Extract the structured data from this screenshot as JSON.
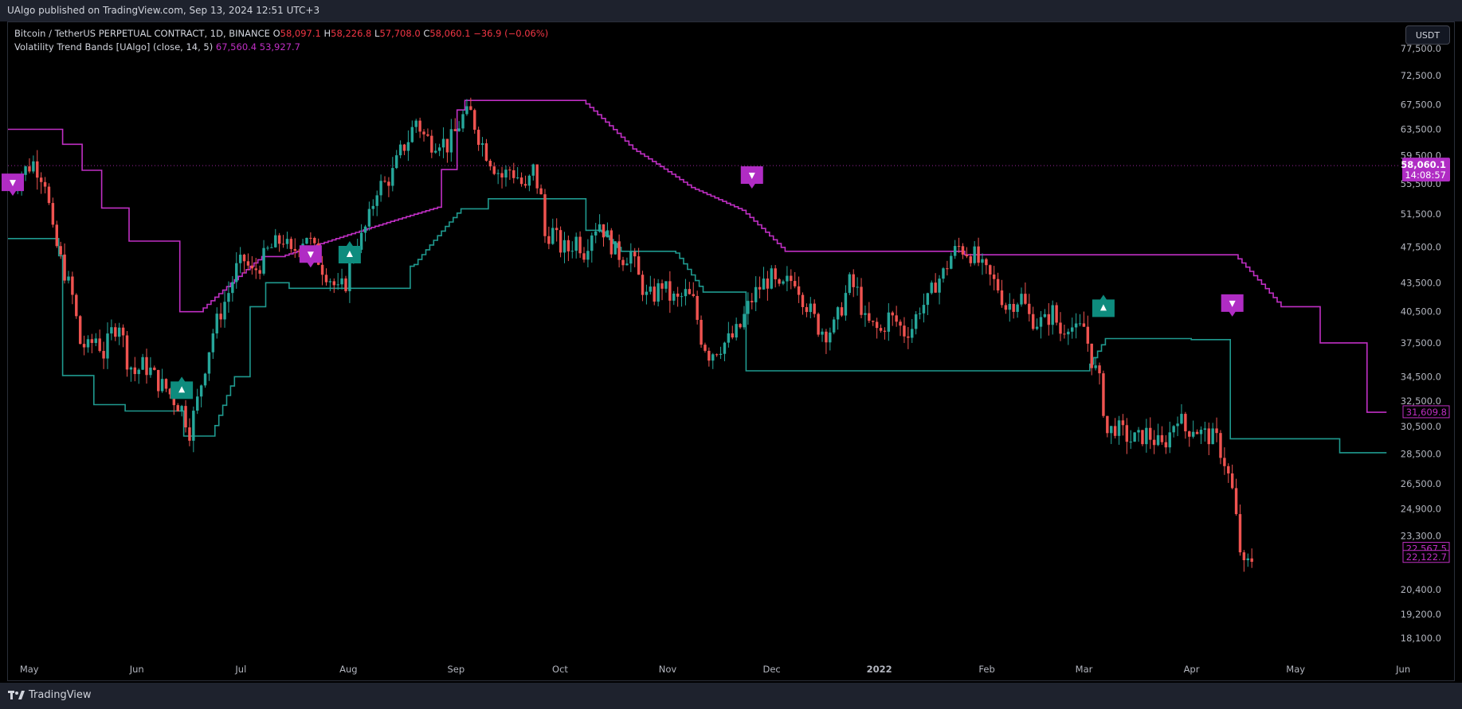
{
  "header": {
    "published_text": "UAlgo published on TradingView.com, Sep 13, 2024 12:51 UTC+3"
  },
  "legend": {
    "symbol": "Bitcoin / TetherUS PERPETUAL CONTRACT, 1D, BINANCE",
    "o_label": "O",
    "o_value": "58,097.1",
    "h_label": "H",
    "h_value": "58,226.8",
    "l_label": "L",
    "l_value": "57,708.0",
    "c_label": "C",
    "c_value": "58,060.1",
    "change": "−36.9 (−0.06%)",
    "indicator": "Volatility Trend Bands [UAlgo] (close, 14, 5)",
    "ind_val1": "67,560.4",
    "ind_val2": "53,927.7"
  },
  "currency_button": "USDT",
  "brand": {
    "name": "TradingView"
  },
  "colors": {
    "up": "#26a69a",
    "down": "#ef5350",
    "upper_band": "#c02fc4",
    "lower_band": "#1f9a8f",
    "sell_label": "#b02cc4",
    "buy_label": "#0e8c7e",
    "background": "#000000"
  },
  "chart_data": {
    "type": "candlestick",
    "symbol": "Bitcoin / TetherUS PERPETUAL CONTRACT",
    "interval": "1D",
    "exchange": "BINANCE",
    "y_axis_ticks": [
      77500,
      72500,
      67500,
      63500,
      59500,
      55500,
      51500,
      47500,
      43500,
      40500,
      37500,
      34500,
      32500,
      30500,
      28500,
      26500,
      24900,
      23300,
      20400,
      19200,
      18100
    ],
    "y_axis_labels": [
      "77,500.0",
      "72,500.0",
      "67,500.0",
      "63,500.0",
      "59,500.0",
      "55,500.0",
      "51,500.0",
      "47,500.0",
      "43,500.0",
      "40,500.0",
      "37,500.0",
      "34,500.0",
      "32,500.0",
      "30,500.0",
      "28,500.0",
      "26,500.0",
      "24,900.0",
      "23,300.0",
      "20,400.0",
      "19,200.0",
      "18,100.0"
    ],
    "ylim": [
      17600,
      79000
    ],
    "y_scale": "log",
    "x_labels": [
      "May",
      "Jun",
      "Jul",
      "Aug",
      "Sep",
      "Oct",
      "Nov",
      "Dec",
      "2022",
      "Feb",
      "Mar",
      "Apr",
      "May",
      "Jun"
    ],
    "last_price": "58,060.1",
    "countdown": "14:08:57",
    "price_badges": [
      {
        "text": "31,609.8",
        "value": 31609.8
      },
      {
        "text": "22,567.5",
        "value": 22567.5
      },
      {
        "text": "22,122.7",
        "value": 22122.7
      }
    ],
    "upper_band": [
      [
        0,
        63500
      ],
      [
        12,
        63500
      ],
      [
        14,
        61200
      ],
      [
        18,
        61200
      ],
      [
        19,
        57400
      ],
      [
        23,
        57400
      ],
      [
        24,
        52300
      ],
      [
        30,
        52300
      ],
      [
        31,
        48200
      ],
      [
        43,
        48200
      ],
      [
        44,
        40500
      ],
      [
        48,
        40500
      ],
      [
        49,
        40500
      ],
      [
        65,
        46400
      ],
      [
        66,
        46400
      ],
      [
        69,
        46400
      ],
      [
        70,
        46400
      ],
      [
        110,
        52400
      ],
      [
        111,
        57500
      ],
      [
        115,
        66600
      ],
      [
        117,
        68200
      ],
      [
        147,
        68200
      ],
      [
        160,
        60500
      ],
      [
        175,
        55000
      ],
      [
        188,
        52000
      ],
      [
        199,
        47000
      ],
      [
        215,
        47000
      ],
      [
        245,
        46600
      ],
      [
        248,
        46600
      ],
      [
        290,
        46600
      ],
      [
        314,
        46600
      ],
      [
        326,
        41000
      ],
      [
        333,
        41000
      ],
      [
        336,
        37500
      ],
      [
        344,
        37500
      ],
      [
        348,
        31600
      ],
      [
        352,
        31600
      ]
    ],
    "lower_band": [
      [
        0,
        48500
      ],
      [
        8,
        48500
      ],
      [
        9,
        48500
      ],
      [
        13,
        46500
      ],
      [
        14,
        34600
      ],
      [
        21,
        34600
      ],
      [
        22,
        32200
      ],
      [
        29,
        32200
      ],
      [
        30,
        31700
      ],
      [
        44,
        31700
      ],
      [
        45,
        29800
      ],
      [
        52,
        29800
      ],
      [
        58,
        34500
      ],
      [
        62,
        41000
      ],
      [
        66,
        43500
      ],
      [
        70,
        43500
      ],
      [
        72,
        42900
      ],
      [
        92,
        42900
      ],
      [
        96,
        42900
      ],
      [
        100,
        42900
      ],
      [
        103,
        45300
      ],
      [
        104,
        45500
      ],
      [
        116,
        52200
      ],
      [
        123,
        53500
      ],
      [
        125,
        53500
      ],
      [
        147,
        53500
      ],
      [
        148,
        49500
      ],
      [
        152,
        49300
      ],
      [
        157,
        47000
      ],
      [
        171,
        46800
      ],
      [
        178,
        42500
      ],
      [
        188,
        42500
      ],
      [
        189,
        35000
      ],
      [
        200,
        35000
      ],
      [
        276,
        35000
      ],
      [
        281,
        37900
      ],
      [
        282,
        37900
      ],
      [
        302,
        37900
      ],
      [
        303,
        37800
      ],
      [
        310,
        37800
      ],
      [
        313,
        29600
      ],
      [
        330,
        29600
      ],
      [
        341,
        28600
      ],
      [
        350,
        28600
      ]
    ],
    "signals": [
      {
        "type": "sell",
        "bar": 0,
        "price": 55500
      },
      {
        "type": "buy",
        "bar": 44,
        "price": 33500
      },
      {
        "type": "sell",
        "bar": 77,
        "price": 46500
      },
      {
        "type": "buy",
        "bar": 87,
        "price": 46800
      },
      {
        "type": "sell",
        "bar": 190,
        "price": 56500
      },
      {
        "type": "buy",
        "bar": 280,
        "price": 41000
      },
      {
        "type": "sell",
        "bar": 313,
        "price": 41200
      }
    ],
    "price_path": [
      [
        0,
        55200
      ],
      [
        3,
        57000
      ],
      [
        6,
        58500
      ],
      [
        9,
        56000
      ],
      [
        11,
        49000
      ],
      [
        13,
        46000
      ],
      [
        16,
        42000
      ],
      [
        18,
        37500
      ],
      [
        20,
        37000
      ],
      [
        22,
        38000
      ],
      [
        24,
        36500
      ],
      [
        26,
        38500
      ],
      [
        28,
        39500
      ],
      [
        30,
        36000
      ],
      [
        32,
        34800
      ],
      [
        34,
        35500
      ],
      [
        36,
        35000
      ],
      [
        38,
        34000
      ],
      [
        40,
        33500
      ],
      [
        42,
        32600
      ],
      [
        44,
        31900
      ],
      [
        46,
        30200
      ],
      [
        48,
        32500
      ],
      [
        50,
        35500
      ],
      [
        52,
        38500
      ],
      [
        54,
        40500
      ],
      [
        56,
        42500
      ],
      [
        58,
        45000
      ],
      [
        60,
        46000
      ],
      [
        62,
        44500
      ],
      [
        64,
        45500
      ],
      [
        66,
        47000
      ],
      [
        68,
        47800
      ],
      [
        70,
        48500
      ],
      [
        72,
        46500
      ],
      [
        74,
        48000
      ],
      [
        76,
        49000
      ],
      [
        78,
        47000
      ],
      [
        80,
        45200
      ],
      [
        82,
        44000
      ],
      [
        84,
        42500
      ],
      [
        86,
        43500
      ],
      [
        88,
        47500
      ],
      [
        90,
        48500
      ],
      [
        92,
        51000
      ],
      [
        94,
        55000
      ],
      [
        96,
        55500
      ],
      [
        98,
        57000
      ],
      [
        100,
        60000
      ],
      [
        102,
        62000
      ],
      [
        104,
        65000
      ],
      [
        106,
        62500
      ],
      [
        108,
        61500
      ],
      [
        110,
        62000
      ],
      [
        112,
        61000
      ],
      [
        114,
        63000
      ],
      [
        116,
        65500
      ],
      [
        118,
        66000
      ],
      [
        120,
        62500
      ],
      [
        122,
        60000
      ],
      [
        124,
        58000
      ],
      [
        126,
        56500
      ],
      [
        128,
        57500
      ],
      [
        130,
        56500
      ],
      [
        132,
        54500
      ],
      [
        134,
        57500
      ],
      [
        136,
        53500
      ],
      [
        137,
        48800
      ],
      [
        139,
        49300
      ],
      [
        141,
        47500
      ],
      [
        143,
        47200
      ],
      [
        145,
        48500
      ],
      [
        147,
        47000
      ],
      [
        149,
        49500
      ],
      [
        151,
        50500
      ],
      [
        153,
        48600
      ],
      [
        155,
        47000
      ],
      [
        157,
        46300
      ],
      [
        159,
        46800
      ],
      [
        161,
        44000
      ],
      [
        163,
        42000
      ],
      [
        165,
        42200
      ],
      [
        167,
        43400
      ],
      [
        169,
        42000
      ],
      [
        171,
        41600
      ],
      [
        173,
        42300
      ],
      [
        175,
        41500
      ],
      [
        177,
        38000
      ],
      [
        179,
        36500
      ],
      [
        181,
        37000
      ],
      [
        183,
        37500
      ],
      [
        185,
        38000
      ],
      [
        187,
        39000
      ],
      [
        189,
        41000
      ],
      [
        191,
        42500
      ],
      [
        193,
        43500
      ],
      [
        195,
        44000
      ],
      [
        197,
        42500
      ],
      [
        199,
        43500
      ],
      [
        201,
        44000
      ],
      [
        203,
        42000
      ],
      [
        205,
        40500
      ],
      [
        207,
        39000
      ],
      [
        209,
        38500
      ],
      [
        211,
        39000
      ],
      [
        213,
        41000
      ],
      [
        215,
        43500
      ],
      [
        217,
        42500
      ],
      [
        219,
        39500
      ],
      [
        221,
        39000
      ],
      [
        223,
        38500
      ],
      [
        225,
        40000
      ],
      [
        227,
        39500
      ],
      [
        229,
        38500
      ],
      [
        231,
        39000
      ],
      [
        233,
        41000
      ],
      [
        235,
        41500
      ],
      [
        237,
        43500
      ],
      [
        239,
        44500
      ],
      [
        241,
        46500
      ],
      [
        243,
        47500
      ],
      [
        245,
        47000
      ],
      [
        247,
        46500
      ],
      [
        249,
        45000
      ],
      [
        251,
        44000
      ],
      [
        253,
        43000
      ],
      [
        255,
        41000
      ],
      [
        257,
        41500
      ],
      [
        259,
        42000
      ],
      [
        261,
        40000
      ],
      [
        263,
        39500
      ],
      [
        265,
        39500
      ],
      [
        267,
        40500
      ],
      [
        269,
        38500
      ],
      [
        271,
        39500
      ],
      [
        273,
        38500
      ],
      [
        275,
        39000
      ],
      [
        277,
        36000
      ],
      [
        279,
        34000
      ],
      [
        281,
        30000
      ],
      [
        283,
        30500
      ],
      [
        285,
        30000
      ],
      [
        287,
        29500
      ],
      [
        289,
        29600
      ],
      [
        291,
        30000
      ],
      [
        293,
        29500
      ],
      [
        295,
        29000
      ],
      [
        297,
        30000
      ],
      [
        299,
        31500
      ],
      [
        301,
        30200
      ],
      [
        303,
        30500
      ],
      [
        305,
        30000
      ],
      [
        307,
        29800
      ],
      [
        309,
        29500
      ],
      [
        311,
        28000
      ],
      [
        313,
        26000
      ],
      [
        315,
        22500
      ],
      [
        316,
        21500
      ],
      [
        318,
        22000
      ]
    ]
  }
}
